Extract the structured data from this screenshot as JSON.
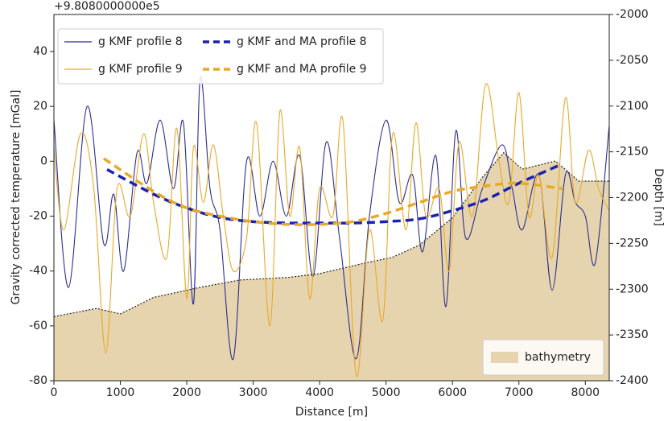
{
  "chart_data": {
    "type": "line",
    "offset_label": "+9.8080000000e5",
    "xlabel": "Distance [m]",
    "ylabel": "Gravity corrected temperature [mGal]",
    "y2label": "Depth [m]",
    "xlim": [
      0,
      8360
    ],
    "ylim": [
      -80,
      53.5
    ],
    "y2lim": [
      -2400,
      -2000
    ],
    "xticks": [
      0,
      1000,
      2000,
      3000,
      4000,
      5000,
      6000,
      7000,
      8000
    ],
    "yticks": [
      -80,
      -60,
      -40,
      -20,
      0,
      20,
      40
    ],
    "y2ticks": [
      -2400,
      -2350,
      -2300,
      -2250,
      -2200,
      -2150,
      -2100,
      -2050,
      -2000
    ],
    "legend": "upper left",
    "series": [
      {
        "name": "g KMF profile 8",
        "color": "#2b2d8f",
        "linestyle": "solid",
        "x": [
          0,
          220,
          500,
          750,
          900,
          1050,
          1250,
          1400,
          1600,
          1800,
          1950,
          2100,
          2200,
          2350,
          2500,
          2700,
          2900,
          3100,
          3300,
          3500,
          3700,
          3900,
          4100,
          4300,
          4550,
          4750,
          5000,
          5200,
          5400,
          5550,
          5750,
          5900,
          6050,
          6200,
          6450,
          6750,
          6900,
          7050,
          7300,
          7500,
          7700,
          7850,
          8000,
          8150,
          8360
        ],
        "values": [
          15,
          -46,
          20,
          -30,
          -12,
          -40,
          3,
          -8,
          15,
          -10,
          14,
          -52,
          30,
          -10,
          -25,
          -72,
          0,
          -20,
          0,
          -20,
          2,
          -42,
          7,
          -28,
          -72,
          -20,
          15,
          -15,
          -5,
          -33,
          2,
          -53,
          11,
          -28,
          -10,
          6,
          -10,
          -25,
          -5,
          -47,
          -5,
          -15,
          -20,
          -37,
          13
        ]
      },
      {
        "name": "g KMF profile 9",
        "color": "#e8a92a",
        "linestyle": "solid",
        "x": [
          0,
          150,
          400,
          600,
          780,
          950,
          1150,
          1350,
          1500,
          1700,
          1850,
          2000,
          2100,
          2250,
          2400,
          2550,
          2700,
          2900,
          3050,
          3250,
          3400,
          3550,
          3700,
          3850,
          4000,
          4200,
          4350,
          4550,
          4750,
          4950,
          5100,
          5300,
          5450,
          5600,
          5800,
          5950,
          6100,
          6300,
          6500,
          6700,
          6850,
          7000,
          7150,
          7300,
          7500,
          7700,
          7850,
          8050,
          8200,
          8360
        ],
        "values": [
          5,
          -25,
          10,
          -10,
          -70,
          -10,
          -20,
          10,
          -15,
          -35,
          12,
          -50,
          5,
          -15,
          6,
          -20,
          -40,
          -28,
          14,
          -60,
          18,
          -20,
          5,
          -50,
          -10,
          -20,
          15,
          -78,
          -25,
          -58,
          10,
          -25,
          14,
          -20,
          -10,
          -40,
          7,
          -20,
          28,
          0,
          -15,
          25,
          -20,
          -5,
          -35,
          23,
          -15,
          4,
          -10,
          -18
        ]
      },
      {
        "name": "g KMF and MA profile 8",
        "color": "#1c22b0",
        "linestyle": "dashed",
        "x": [
          800,
          1500,
          2000,
          2500,
          3000,
          3500,
          4000,
          4500,
          5000,
          5500,
          6000,
          6500,
          7000,
          7650
        ],
        "values": [
          -3,
          -12,
          -17,
          -20.5,
          -22,
          -22.5,
          -22.5,
          -22.5,
          -22,
          -21,
          -18,
          -14,
          -8,
          -1
        ]
      },
      {
        "name": "g KMF and MA profile 9",
        "color": "#e8a92a",
        "linestyle": "dashed",
        "x": [
          750,
          1500,
          2000,
          2500,
          3000,
          3500,
          4000,
          4500,
          5000,
          5500,
          6000,
          6500,
          7000,
          7650
        ],
        "values": [
          1,
          -11,
          -17,
          -20,
          -22,
          -23,
          -23,
          -22,
          -19,
          -15,
          -11,
          -9,
          -8,
          -10
        ]
      },
      {
        "name": "bathymetry",
        "color": "#e6d4ae",
        "linestyle": "area",
        "axis": "y2",
        "x": [
          0,
          640,
          1000,
          1500,
          2200,
          2800,
          3550,
          4000,
          4650,
          5100,
          5500,
          6000,
          6450,
          6770,
          7050,
          7550,
          7900,
          8360
        ],
        "values": [
          -2330,
          -2321,
          -2327,
          -2309,
          -2298,
          -2290,
          -2287,
          -2283,
          -2272,
          -2265,
          -2252,
          -2222,
          -2178,
          -2151,
          -2169,
          -2160,
          -2182,
          -2182
        ]
      }
    ]
  }
}
